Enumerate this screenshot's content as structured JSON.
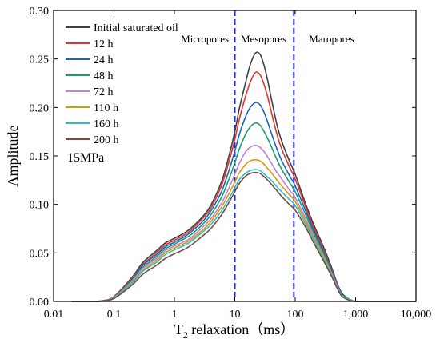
{
  "chart_data": {
    "type": "line",
    "xscale": "log",
    "xlim": [
      0.01,
      10000
    ],
    "ylim": [
      0,
      0.3
    ],
    "xlabel": "T",
    "xlabel_sub": "2",
    "xlabel_rest": " relaxation（ms）",
    "ylabel": "Amplitude",
    "x_ticks": [
      0.01,
      0.1,
      1,
      10,
      100,
      1000,
      10000
    ],
    "x_tick_labels": [
      "0.01",
      "0.1",
      "1",
      "10",
      "100",
      "1,000",
      "10,000"
    ],
    "y_ticks": [
      0,
      0.05,
      0.1,
      0.15,
      0.2,
      0.25,
      0.3
    ],
    "y_tick_labels": [
      "0.00",
      "0.05",
      "0.10",
      "0.15",
      "0.20",
      "0.25",
      "0.30"
    ],
    "legend_position": "top-left",
    "annotation": "15MPa",
    "vlines": [
      {
        "x": 10,
        "color": "#1f2fd1"
      },
      {
        "x": 95,
        "color": "#1f2fd1"
      }
    ],
    "regions": [
      {
        "label": "Micropores",
        "x": 3.2
      },
      {
        "label": "Mesopores",
        "x": 30
      },
      {
        "label": "Maropores",
        "x": 400
      }
    ],
    "x": [
      0.02,
      0.05,
      0.07,
      0.1,
      0.2,
      0.3,
      0.5,
      0.7,
      1,
      1.5,
      2,
      3,
      4,
      6,
      8,
      10,
      12,
      15,
      18,
      22,
      26,
      30,
      35,
      40,
      50,
      60,
      80,
      100,
      150,
      200,
      300,
      400,
      500,
      600,
      800,
      1000,
      1500,
      3000,
      10000
    ],
    "series": [
      {
        "name": "Initial saturated oil",
        "color": "#404040",
        "values": [
          0,
          0,
          0.001,
          0.005,
          0.025,
          0.04,
          0.052,
          0.06,
          0.065,
          0.071,
          0.077,
          0.088,
          0.099,
          0.123,
          0.15,
          0.175,
          0.2,
          0.225,
          0.244,
          0.256,
          0.255,
          0.245,
          0.228,
          0.21,
          0.182,
          0.165,
          0.145,
          0.131,
          0.1,
          0.08,
          0.055,
          0.035,
          0.018,
          0.008,
          0.002,
          0.0,
          0,
          0,
          0
        ]
      },
      {
        "name": "12 h",
        "color": "#e5332a",
        "values": [
          0,
          0,
          0.001,
          0.005,
          0.024,
          0.038,
          0.05,
          0.058,
          0.063,
          0.069,
          0.075,
          0.086,
          0.096,
          0.119,
          0.144,
          0.167,
          0.189,
          0.211,
          0.226,
          0.236,
          0.234,
          0.225,
          0.211,
          0.196,
          0.172,
          0.157,
          0.139,
          0.126,
          0.097,
          0.077,
          0.052,
          0.033,
          0.017,
          0.007,
          0.002,
          0.0,
          0,
          0,
          0
        ]
      },
      {
        "name": "24 h",
        "color": "#1565c0",
        "values": [
          0,
          0,
          0.001,
          0.004,
          0.023,
          0.037,
          0.048,
          0.056,
          0.061,
          0.067,
          0.073,
          0.083,
          0.093,
          0.113,
          0.135,
          0.155,
          0.173,
          0.19,
          0.2,
          0.205,
          0.203,
          0.196,
          0.185,
          0.174,
          0.157,
          0.145,
          0.13,
          0.119,
          0.093,
          0.074,
          0.05,
          0.032,
          0.016,
          0.007,
          0.002,
          0.0,
          0,
          0,
          0
        ]
      },
      {
        "name": "48 h",
        "color": "#1a9e6e",
        "values": [
          0,
          0,
          0.001,
          0.004,
          0.022,
          0.035,
          0.046,
          0.054,
          0.059,
          0.065,
          0.07,
          0.08,
          0.089,
          0.107,
          0.126,
          0.143,
          0.158,
          0.172,
          0.18,
          0.184,
          0.182,
          0.176,
          0.168,
          0.16,
          0.146,
          0.136,
          0.123,
          0.113,
          0.089,
          0.071,
          0.048,
          0.03,
          0.015,
          0.006,
          0.002,
          0.0,
          0,
          0,
          0
        ]
      },
      {
        "name": "72 h",
        "color": "#c77ddc",
        "values": [
          0,
          0,
          0.001,
          0.004,
          0.021,
          0.034,
          0.044,
          0.052,
          0.057,
          0.062,
          0.067,
          0.077,
          0.085,
          0.101,
          0.117,
          0.131,
          0.143,
          0.154,
          0.159,
          0.161,
          0.159,
          0.155,
          0.149,
          0.143,
          0.133,
          0.126,
          0.115,
          0.107,
          0.085,
          0.068,
          0.046,
          0.029,
          0.015,
          0.006,
          0.002,
          0.0,
          0,
          0,
          0
        ]
      },
      {
        "name": "110 h",
        "color": "#d99a00",
        "values": [
          0,
          0,
          0.001,
          0.004,
          0.02,
          0.032,
          0.042,
          0.05,
          0.055,
          0.06,
          0.065,
          0.074,
          0.082,
          0.097,
          0.111,
          0.123,
          0.133,
          0.141,
          0.145,
          0.146,
          0.145,
          0.142,
          0.137,
          0.133,
          0.125,
          0.119,
          0.11,
          0.103,
          0.082,
          0.066,
          0.045,
          0.028,
          0.014,
          0.006,
          0.002,
          0.0,
          0,
          0,
          0
        ]
      },
      {
        "name": "160 h",
        "color": "#2bbfc8",
        "values": [
          0,
          0,
          0.001,
          0.004,
          0.019,
          0.031,
          0.04,
          0.048,
          0.053,
          0.058,
          0.063,
          0.072,
          0.079,
          0.093,
          0.106,
          0.117,
          0.126,
          0.132,
          0.135,
          0.136,
          0.135,
          0.132,
          0.128,
          0.125,
          0.118,
          0.113,
          0.105,
          0.099,
          0.079,
          0.064,
          0.043,
          0.027,
          0.014,
          0.006,
          0.002,
          0.0,
          0,
          0,
          0
        ]
      },
      {
        "name": "200 h",
        "color": "#7a4a40",
        "values": [
          0,
          0,
          0.001,
          0.003,
          0.017,
          0.028,
          0.037,
          0.044,
          0.049,
          0.054,
          0.059,
          0.068,
          0.075,
          0.089,
          0.102,
          0.113,
          0.122,
          0.129,
          0.132,
          0.133,
          0.132,
          0.129,
          0.125,
          0.121,
          0.114,
          0.108,
          0.1,
          0.094,
          0.076,
          0.061,
          0.041,
          0.026,
          0.013,
          0.005,
          0.001,
          0.0,
          0,
          0,
          0
        ]
      }
    ]
  }
}
